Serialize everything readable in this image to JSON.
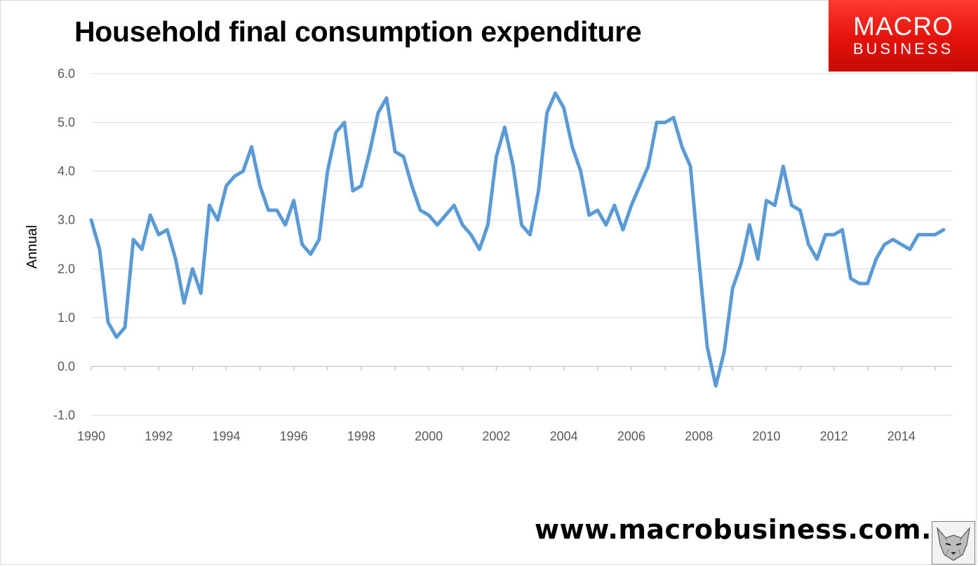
{
  "header": {
    "title": "Household final consumption expenditure"
  },
  "logo": {
    "line1": "MACRO",
    "line2": "BUSINESS"
  },
  "footer": {
    "website": "www.macrobusiness.com.au"
  },
  "colors": {
    "series": "#5b9bd5",
    "logo_red": "#e3120b",
    "grid": "#d9d9d9",
    "axis_text": "#595959"
  },
  "chart_data": {
    "type": "line",
    "title": "Household final consumption expenditure",
    "xlabel": "",
    "ylabel": "Annual",
    "ylim": [
      -1.0,
      6.0
    ],
    "xlim": [
      1990,
      2015.25
    ],
    "y_ticks": [
      "-1.0",
      "0.0",
      "1.0",
      "2.0",
      "3.0",
      "4.0",
      "5.0",
      "6.0"
    ],
    "x_ticks": [
      "1990",
      "1992",
      "1994",
      "1996",
      "1998",
      "2000",
      "2002",
      "2004",
      "2006",
      "2008",
      "2010",
      "2012",
      "2014"
    ],
    "grid": true,
    "legend": "none",
    "series": [
      {
        "x": [
          1990.0,
          1990.25,
          1990.5,
          1990.75,
          1991.0,
          1991.25,
          1991.5,
          1991.75,
          1992.0,
          1992.25,
          1992.5,
          1992.75,
          1993.0,
          1993.25,
          1993.5,
          1993.75,
          1994.0,
          1994.25,
          1994.5,
          1994.75,
          1995.0,
          1995.25,
          1995.5,
          1995.75,
          1996.0,
          1996.25,
          1996.5,
          1996.75,
          1997.0,
          1997.25,
          1997.5,
          1997.75,
          1998.0,
          1998.25,
          1998.5,
          1998.75,
          1999.0,
          1999.25,
          1999.5,
          1999.75,
          2000.0,
          2000.25,
          2000.5,
          2000.75,
          2001.0,
          2001.25,
          2001.5,
          2001.75,
          2002.0,
          2002.25,
          2002.5,
          2002.75,
          2003.0,
          2003.25,
          2003.5,
          2003.75,
          2004.0,
          2004.25,
          2004.5,
          2004.75,
          2005.0,
          2005.25,
          2005.5,
          2005.75,
          2006.0,
          2006.25,
          2006.5,
          2006.75,
          2007.0,
          2007.25,
          2007.5,
          2007.75,
          2008.0,
          2008.25,
          2008.5,
          2008.75,
          2009.0,
          2009.25,
          2009.5,
          2009.75,
          2010.0,
          2010.25,
          2010.5,
          2010.75,
          2011.0,
          2011.25,
          2011.5,
          2011.75,
          2012.0,
          2012.25,
          2012.5,
          2012.75,
          2013.0,
          2013.25,
          2013.5,
          2013.75,
          2014.0,
          2014.25,
          2014.5,
          2014.75,
          2015.0,
          2015.25
        ],
        "values": [
          3.0,
          2.4,
          0.9,
          0.6,
          0.8,
          2.6,
          2.4,
          3.1,
          2.7,
          2.8,
          2.2,
          1.3,
          2.0,
          1.5,
          3.3,
          3.0,
          3.7,
          3.9,
          4.0,
          4.5,
          3.7,
          3.2,
          3.2,
          2.9,
          3.4,
          2.5,
          2.3,
          2.6,
          4.0,
          4.8,
          5.0,
          3.6,
          3.7,
          4.4,
          5.2,
          5.5,
          4.4,
          4.3,
          3.7,
          3.2,
          3.1,
          2.9,
          3.1,
          3.3,
          2.9,
          2.7,
          2.4,
          2.9,
          4.3,
          4.9,
          4.1,
          2.9,
          2.7,
          3.6,
          5.2,
          5.6,
          5.3,
          4.5,
          4.0,
          3.1,
          3.2,
          2.9,
          3.3,
          2.8,
          3.3,
          3.7,
          4.1,
          5.0,
          5.0,
          5.1,
          4.5,
          4.1,
          2.2,
          0.4,
          -0.4,
          0.3,
          1.6,
          2.1,
          2.9,
          2.2,
          3.4,
          3.3,
          4.1,
          3.3,
          3.2,
          2.5,
          2.2,
          2.7,
          2.7,
          2.8,
          1.8,
          1.7,
          1.7,
          2.2,
          2.5,
          2.6,
          2.5,
          2.4,
          2.7,
          2.7,
          2.7,
          2.8
        ]
      }
    ]
  }
}
